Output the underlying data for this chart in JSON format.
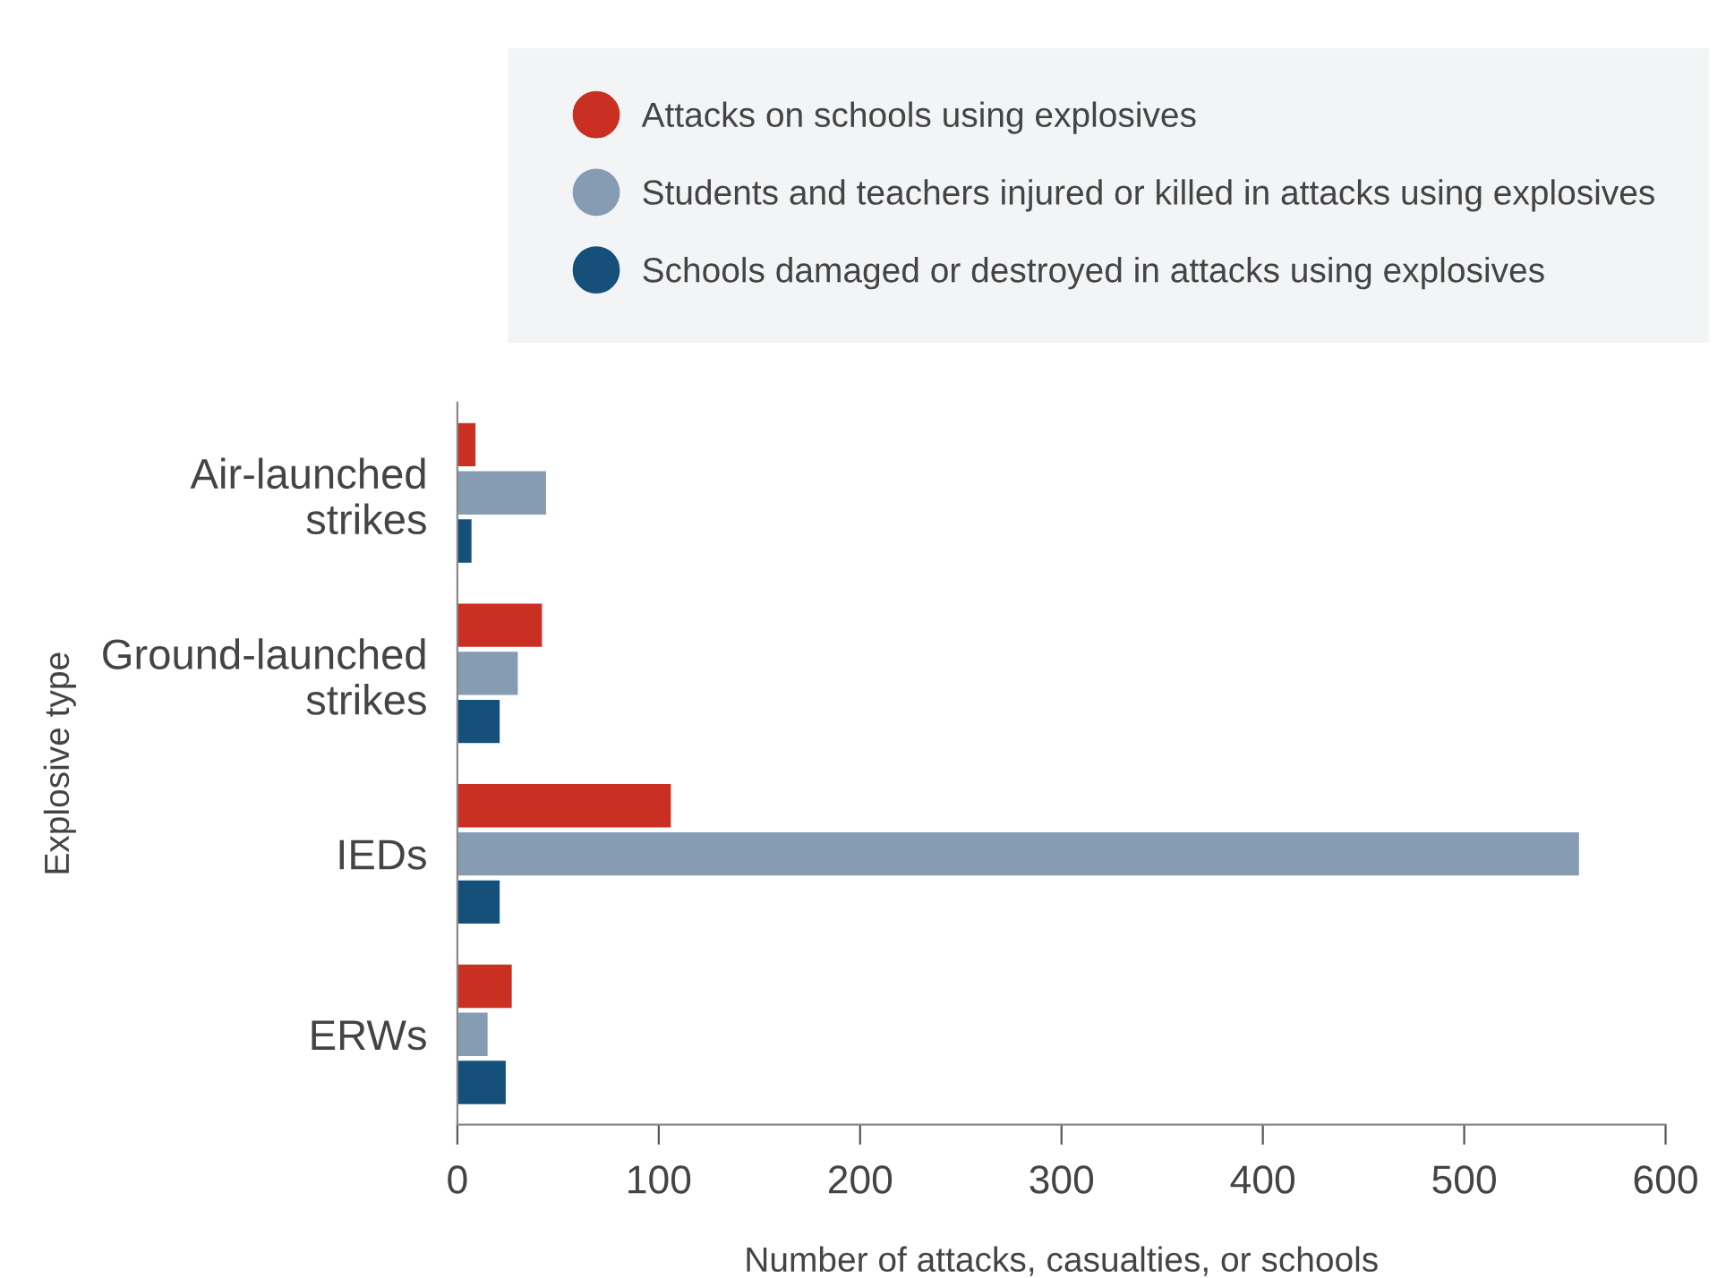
{
  "chart_data": {
    "type": "bar",
    "orientation": "horizontal",
    "categories": [
      "Air-launched\nstrikes",
      "Ground-launched\nstrikes",
      "IEDs",
      "ERWs"
    ],
    "series": [
      {
        "name": "Attacks on schools using explosives",
        "color": "#c93022",
        "values": [
          9,
          42,
          106,
          27
        ]
      },
      {
        "name": "Students and teachers injured or killed in attacks using explosives",
        "color": "#869cb3",
        "values": [
          44,
          30,
          557,
          15
        ]
      },
      {
        "name": "Schools damaged or destroyed in attacks using explosives",
        "color": "#14507a",
        "values": [
          7,
          21,
          21,
          24
        ]
      }
    ],
    "xlabel": "Number of attacks, casualties, or schools",
    "ylabel": "Explosive type",
    "xlim": [
      0,
      600
    ],
    "xticks": [
      0,
      100,
      200,
      300,
      400,
      500,
      600
    ],
    "legend": "top right",
    "grid": false
  }
}
